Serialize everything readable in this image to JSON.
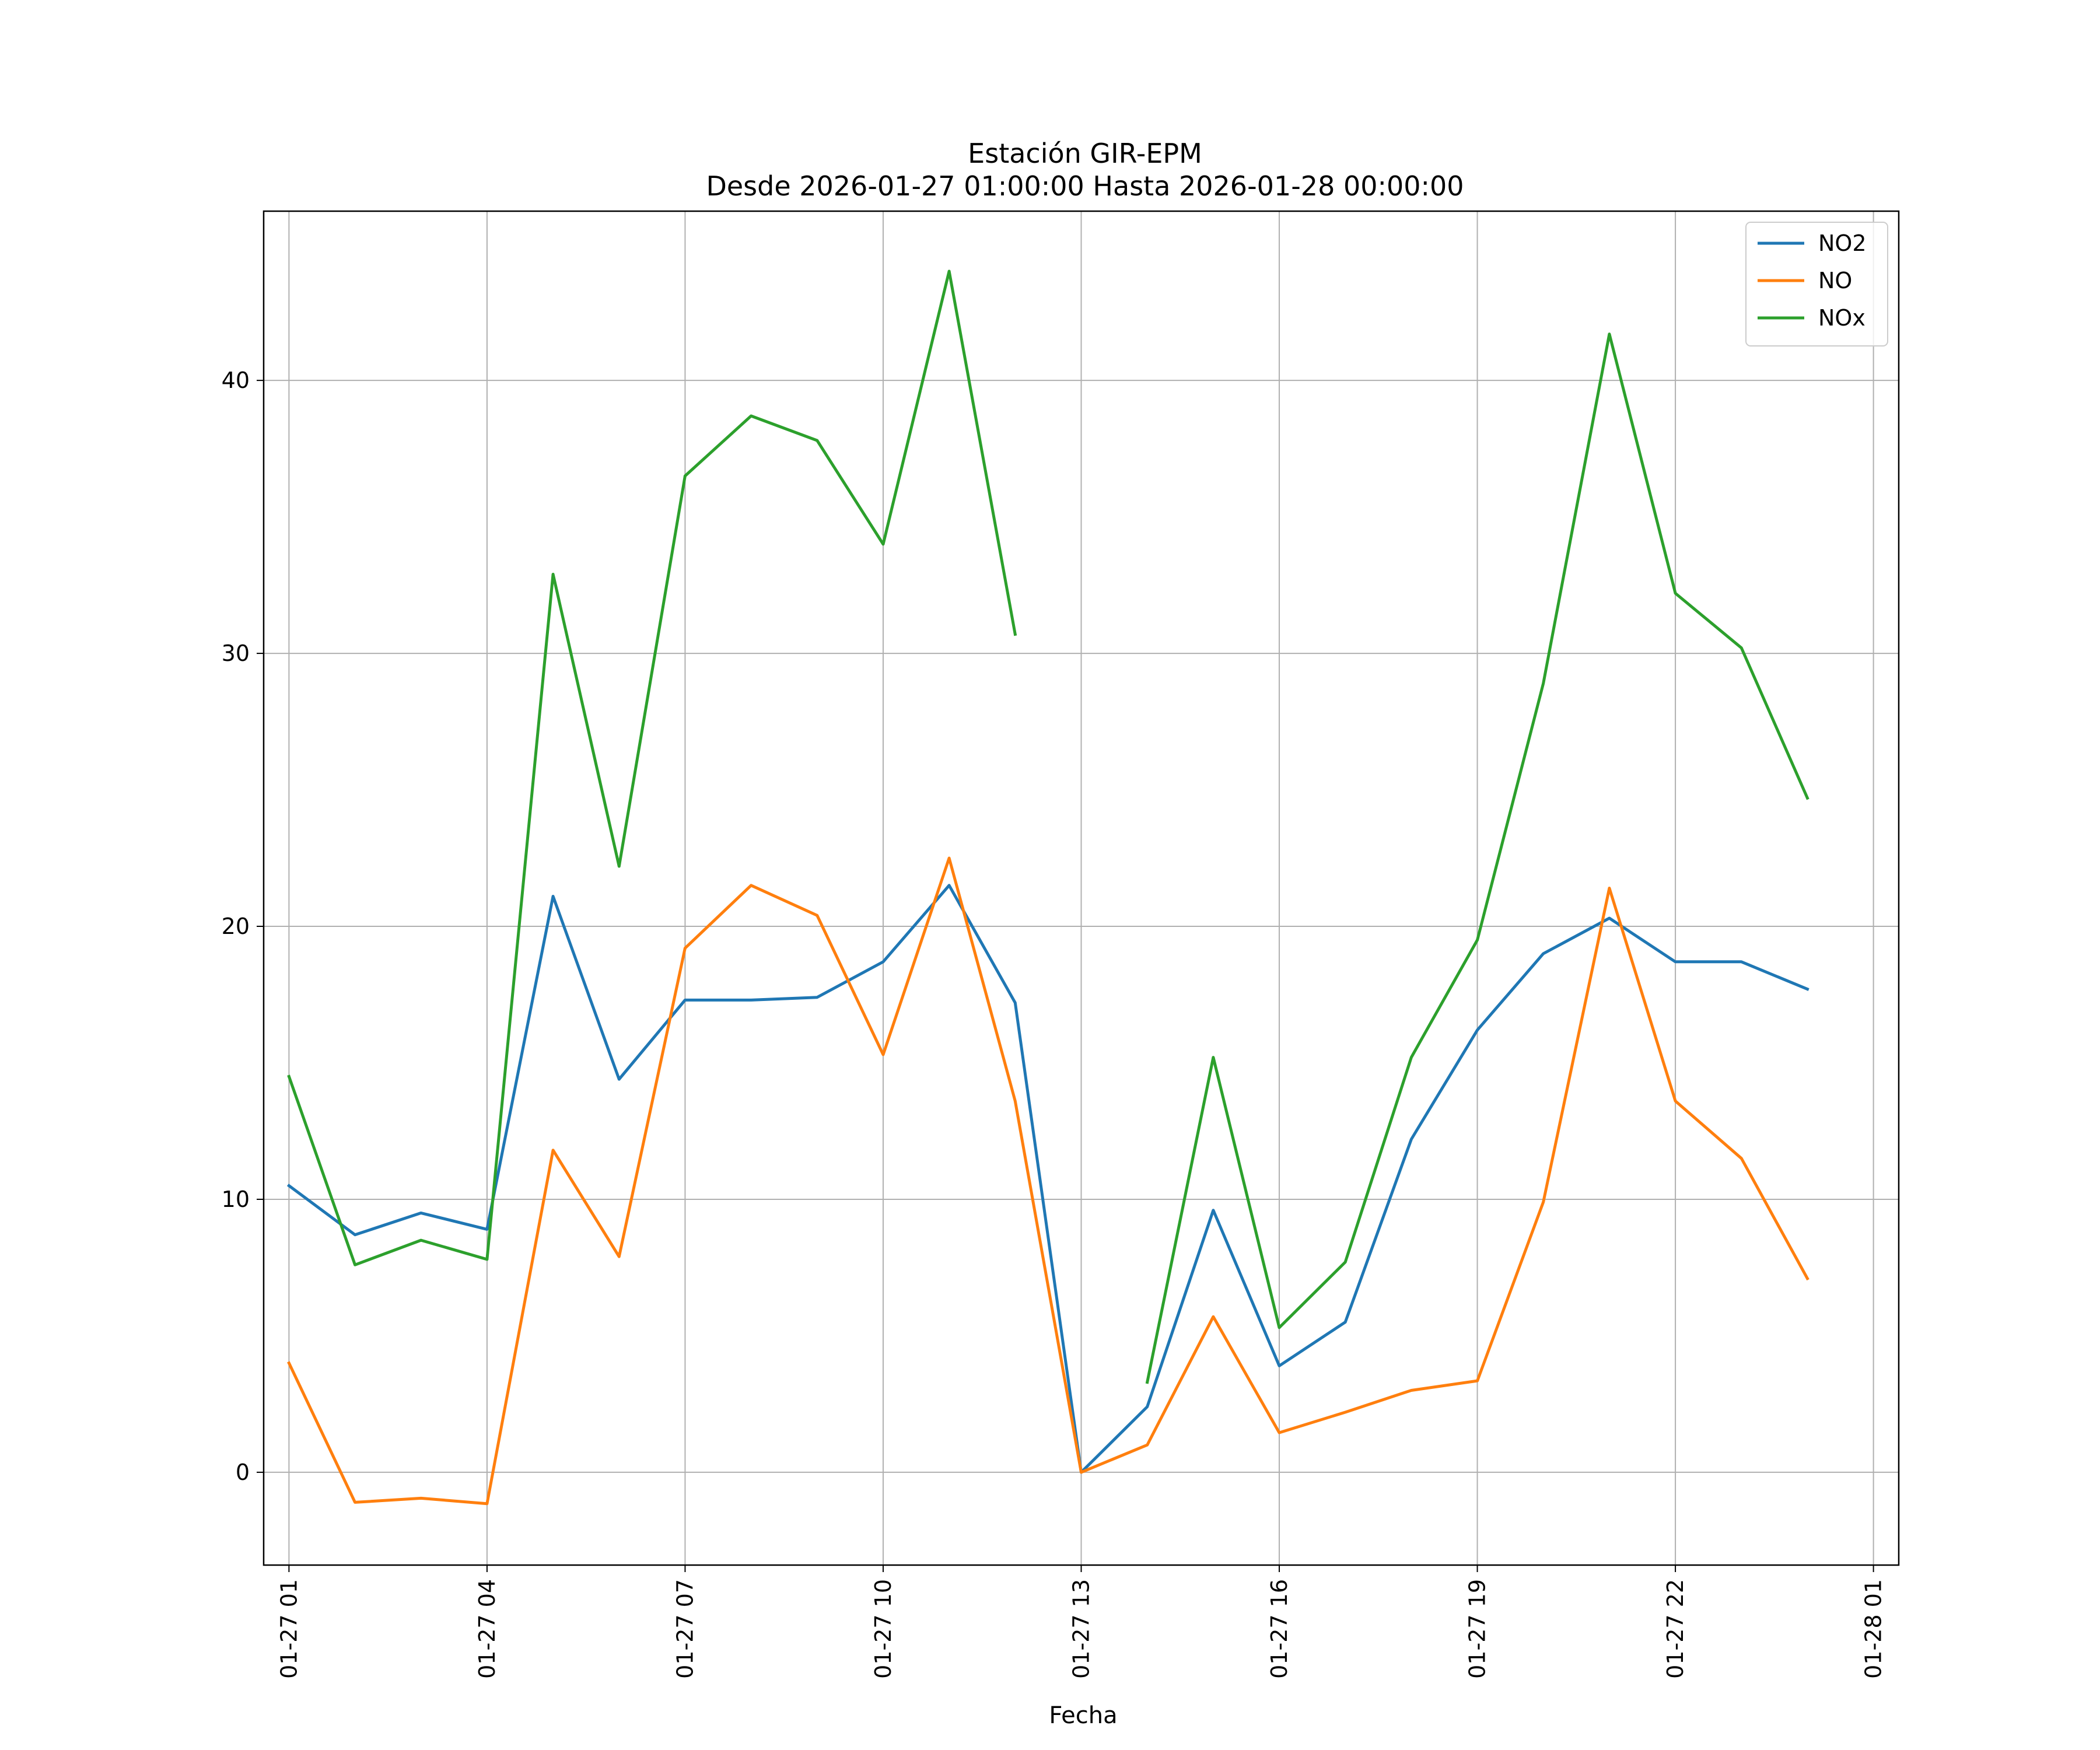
{
  "chart_data": {
    "type": "line",
    "title": "Estación GIR-EPM",
    "subtitle": "Desde 2026-01-27 01:00:00 Hasta 2026-01-28 00:00:00",
    "xlabel": "Fecha",
    "ylabel": "",
    "x": [
      "2026-01-27 01:00",
      "2026-01-27 02:00",
      "2026-01-27 03:00",
      "2026-01-27 04:00",
      "2026-01-27 05:00",
      "2026-01-27 06:00",
      "2026-01-27 07:00",
      "2026-01-27 08:00",
      "2026-01-27 09:00",
      "2026-01-27 10:00",
      "2026-01-27 11:00",
      "2026-01-27 12:00",
      "2026-01-27 13:00",
      "2026-01-27 14:00",
      "2026-01-27 15:00",
      "2026-01-27 16:00",
      "2026-01-27 17:00",
      "2026-01-27 18:00",
      "2026-01-27 19:00",
      "2026-01-27 20:00",
      "2026-01-27 21:00",
      "2026-01-27 22:00",
      "2026-01-27 23:00",
      "2026-01-28 00:00"
    ],
    "xlim": [
      "2026-01-27 00:37",
      "2026-01-28 01:23"
    ],
    "ylim": [
      -3.4,
      46.2
    ],
    "xticks": [
      {
        "x": "2026-01-27 01:00",
        "label": "01-27 01"
      },
      {
        "x": "2026-01-27 04:00",
        "label": "01-27 04"
      },
      {
        "x": "2026-01-27 07:00",
        "label": "01-27 07"
      },
      {
        "x": "2026-01-27 10:00",
        "label": "01-27 10"
      },
      {
        "x": "2026-01-27 13:00",
        "label": "01-27 13"
      },
      {
        "x": "2026-01-27 16:00",
        "label": "01-27 16"
      },
      {
        "x": "2026-01-27 19:00",
        "label": "01-27 19"
      },
      {
        "x": "2026-01-27 22:00",
        "label": "01-27 22"
      },
      {
        "x": "2026-01-28 01:00",
        "label": "01-28 01"
      }
    ],
    "yticks": [
      {
        "y": 0,
        "label": "0"
      },
      {
        "y": 10,
        "label": "10"
      },
      {
        "y": 20,
        "label": "20"
      },
      {
        "y": 30,
        "label": "30"
      },
      {
        "y": 40,
        "label": "40"
      }
    ],
    "grid": true,
    "legend_position": "top-right",
    "series": [
      {
        "name": "NO2",
        "color": "#1f77b4",
        "values": [
          10.5,
          8.7,
          9.5,
          8.9,
          21.1,
          14.4,
          17.3,
          17.3,
          17.4,
          18.7,
          21.5,
          17.2,
          0.0,
          2.4,
          9.6,
          3.9,
          5.5,
          12.2,
          16.2,
          19.0,
          20.3,
          18.7,
          18.7,
          17.7
        ]
      },
      {
        "name": "NO",
        "color": "#ff7f0e",
        "values": [
          4.0,
          -1.1,
          -0.95,
          -1.15,
          11.8,
          7.9,
          19.2,
          21.5,
          20.4,
          15.3,
          22.5,
          13.6,
          0.0,
          1.0,
          5.7,
          1.45,
          2.2,
          3.0,
          3.35,
          9.9,
          21.4,
          13.6,
          11.5,
          7.1
        ]
      },
      {
        "name": "NOx",
        "color": "#2ca02c",
        "values": [
          14.5,
          7.6,
          8.5,
          7.8,
          32.9,
          22.2,
          36.5,
          38.7,
          37.8,
          34.0,
          44.0,
          30.7,
          null,
          3.3,
          15.2,
          5.3,
          7.7,
          15.2,
          19.5,
          28.9,
          41.7,
          32.2,
          30.2,
          24.7
        ]
      }
    ]
  }
}
